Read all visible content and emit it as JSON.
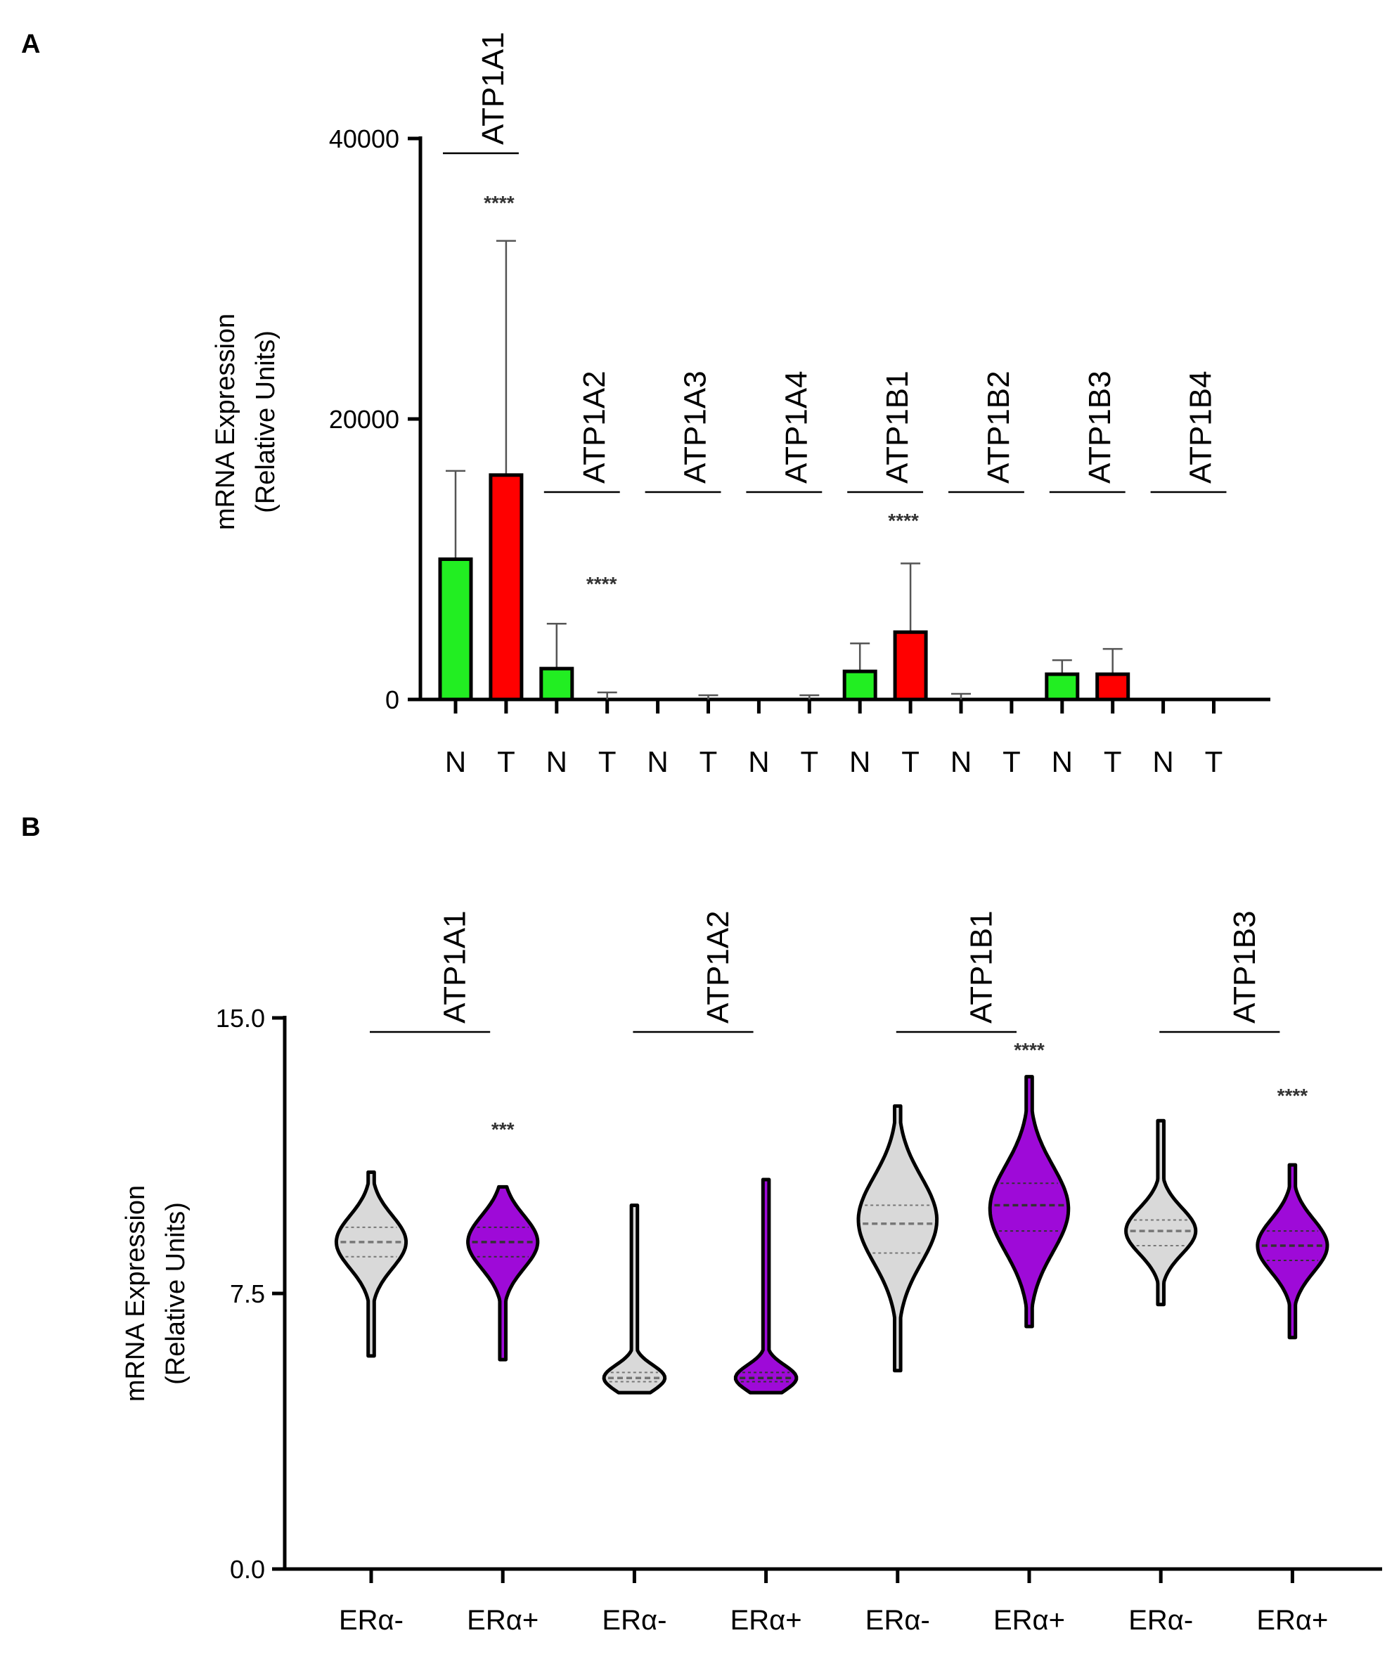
{
  "panels": {
    "a_label": "A",
    "b_label": "B"
  },
  "colors": {
    "normal": "#22ee22",
    "tumor": "#ff0000",
    "er_neg": "#d9d9d9",
    "er_pos": "#9e0ad8",
    "axis": "#000000",
    "stars": "#333333",
    "error": "#555555"
  },
  "chart_data": [
    {
      "type": "bar",
      "panel": "A",
      "ylabel_line1": "mRNA Expression",
      "ylabel_line2": "(Relative Units)",
      "ylim": [
        0,
        40000
      ],
      "yticks": [
        0,
        20000,
        40000
      ],
      "ytick_labels": [
        "0",
        "20000",
        "40000"
      ],
      "categories": [
        "N",
        "T",
        "N",
        "T",
        "N",
        "T",
        "N",
        "T",
        "N",
        "T",
        "N",
        "T",
        "N",
        "T",
        "N",
        "T"
      ],
      "genes": [
        {
          "name": "ATP1A1",
          "normal": 10000,
          "normal_err": 6300,
          "tumor": 16000,
          "tumor_err": 16700,
          "stars": "****"
        },
        {
          "name": "ATP1A2",
          "normal": 2200,
          "normal_err": 3200,
          "tumor": 0,
          "tumor_err": 500,
          "stars": "****"
        },
        {
          "name": "ATP1A3",
          "normal": 0,
          "normal_err": 0,
          "tumor": 0,
          "tumor_err": 300,
          "stars": ""
        },
        {
          "name": "ATP1A4",
          "normal": 0,
          "normal_err": 0,
          "tumor": 0,
          "tumor_err": 300,
          "stars": ""
        },
        {
          "name": "ATP1B1",
          "normal": 2000,
          "normal_err": 2000,
          "tumor": 4800,
          "tumor_err": 4900,
          "stars": "****"
        },
        {
          "name": "ATP1B2",
          "normal": 0,
          "normal_err": 400,
          "tumor": 0,
          "tumor_err": 0,
          "stars": ""
        },
        {
          "name": "ATP1B3",
          "normal": 1800,
          "normal_err": 1000,
          "tumor": 1800,
          "tumor_err": 1800,
          "stars": ""
        },
        {
          "name": "ATP1B4",
          "normal": 0,
          "normal_err": 0,
          "tumor": 0,
          "tumor_err": 0,
          "stars": ""
        }
      ]
    },
    {
      "type": "violin",
      "panel": "B",
      "ylabel_line1": "mRNA Expression",
      "ylabel_line2": "(Relative Units)",
      "ylim": [
        0,
        15
      ],
      "yticks": [
        0,
        7.5,
        15
      ],
      "ytick_labels": [
        "0.0",
        "7.5",
        "15.0"
      ],
      "categories": [
        "ERα-",
        "ERα+",
        "ERα-",
        "ERα+",
        "ERα-",
        "ERα+",
        "ERα-",
        "ERα+"
      ],
      "genes": [
        {
          "name": "ATP1A1",
          "stars": "***",
          "neg": {
            "min": 5.8,
            "max": 10.8,
            "median": 8.9,
            "q1": 8.5,
            "q3": 9.3,
            "peak": 8.9,
            "halfwidth": 0.8
          },
          "pos": {
            "min": 5.7,
            "max": 10.4,
            "median": 8.9,
            "q1": 8.5,
            "q3": 9.3,
            "peak": 8.9,
            "halfwidth": 0.8
          }
        },
        {
          "name": "ATP1A2",
          "stars": "",
          "neg": {
            "min": 4.8,
            "max": 9.9,
            "median": 5.2,
            "q1": 5.1,
            "q3": 5.35,
            "peak": 5.2,
            "halfwidth": 0.7
          },
          "pos": {
            "min": 4.8,
            "max": 10.6,
            "median": 5.2,
            "q1": 5.1,
            "q3": 5.35,
            "peak": 5.2,
            "halfwidth": 0.7
          }
        },
        {
          "name": "ATP1B1",
          "stars": "****",
          "neg": {
            "min": 5.4,
            "max": 12.6,
            "median": 9.4,
            "q1": 8.6,
            "q3": 9.9,
            "peak": 9.5,
            "halfwidth": 0.9
          },
          "pos": {
            "min": 6.6,
            "max": 13.4,
            "median": 9.9,
            "q1": 9.2,
            "q3": 10.5,
            "peak": 9.8,
            "halfwidth": 0.9
          }
        },
        {
          "name": "ATP1B3",
          "stars": "****",
          "neg": {
            "min": 7.2,
            "max": 12.2,
            "median": 9.2,
            "q1": 8.8,
            "q3": 9.5,
            "peak": 9.2,
            "halfwidth": 0.8
          },
          "pos": {
            "min": 6.3,
            "max": 11.0,
            "median": 8.8,
            "q1": 8.4,
            "q3": 9.2,
            "peak": 8.8,
            "halfwidth": 0.8
          }
        }
      ]
    }
  ]
}
